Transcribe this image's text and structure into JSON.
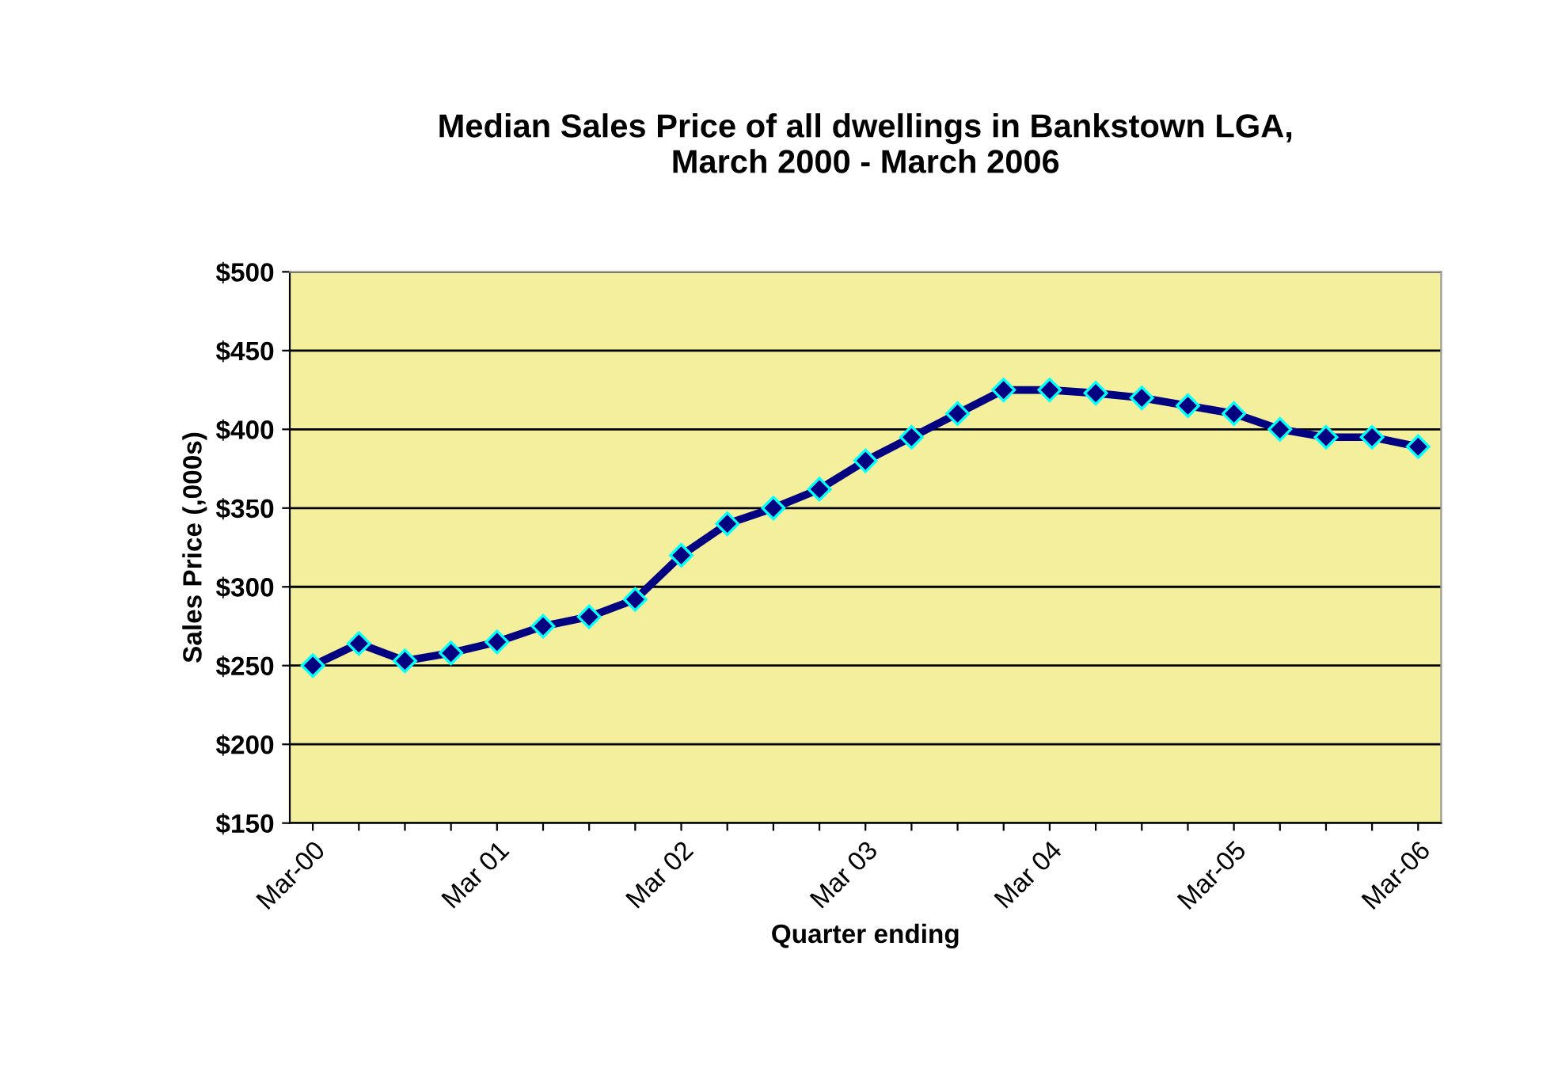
{
  "chart_data": {
    "type": "line",
    "title": "Median Sales Price of all dwellings in Bankstown LGA,\nMarch 2000 - March 2006",
    "xlabel": "Quarter ending",
    "ylabel": "Sales Price (,000s)",
    "categories": [
      "Mar-00",
      null,
      null,
      null,
      "Mar 01",
      null,
      null,
      null,
      "Mar 02",
      null,
      null,
      null,
      "Mar 03",
      null,
      null,
      null,
      "Mar 04",
      null,
      null,
      null,
      "Mar-05",
      null,
      null,
      null,
      "Mar-06"
    ],
    "series": [
      {
        "color": "#000080",
        "values": [
          250,
          264,
          253,
          258,
          265,
          275,
          281,
          292,
          320,
          340,
          350,
          362,
          380,
          395,
          410,
          425,
          425,
          423,
          420,
          415,
          410,
          400,
          395,
          395,
          389
        ]
      }
    ],
    "ylim": [
      150,
      500
    ],
    "yticks": [
      {
        "value": 150,
        "label": "$150"
      },
      {
        "value": 200,
        "label": "$200"
      },
      {
        "value": 250,
        "label": "$250"
      },
      {
        "value": 300,
        "label": "$300"
      },
      {
        "value": 350,
        "label": "$350"
      },
      {
        "value": 400,
        "label": "$400"
      },
      {
        "value": 450,
        "label": "$450"
      },
      {
        "value": 500,
        "label": "$500"
      }
    ],
    "grid": "y",
    "marker": "diamond",
    "line_style": "solid"
  }
}
